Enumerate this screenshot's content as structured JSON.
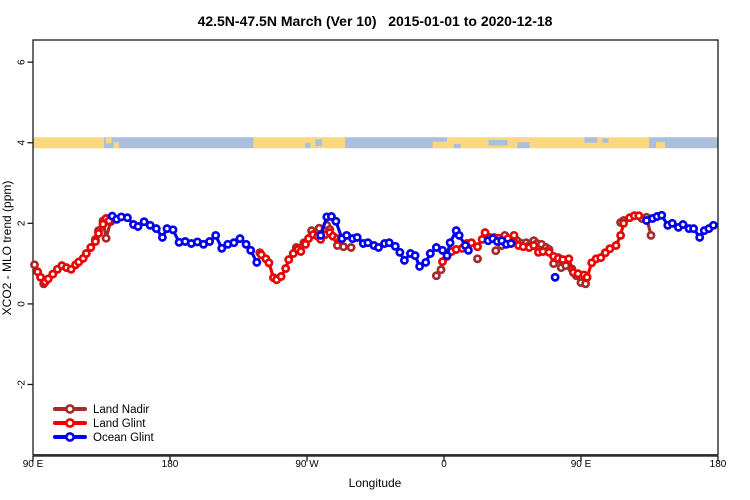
{
  "chart_data": {
    "type": "line",
    "title": "42.5N-47.5N March (Ver 10)   2015-01-01 to 2020-12-18",
    "xlabel": "Longitude",
    "ylabel": "XCO2 - MLO trend (ppm)",
    "x_axis": {
      "unit": "degrees eastward from 90E (axis wraps 90E>180>90W>0>90E>180)",
      "range_deg": [
        0,
        450
      ],
      "ticks": [
        {
          "deg": 0,
          "label": "90 E"
        },
        {
          "deg": 90,
          "label": "180"
        },
        {
          "deg": 180,
          "label": "90 W"
        },
        {
          "deg": 270,
          "label": "0"
        },
        {
          "deg": 360,
          "label": "90 E"
        },
        {
          "deg": 450,
          "label": "180"
        }
      ]
    },
    "y_axis": {
      "ticks": [
        -2,
        0,
        2,
        4,
        6
      ],
      "lim": [
        -3.75,
        6.55
      ],
      "labels_rotated": true
    },
    "gap_break_deg": 10,
    "marker": "open-circle",
    "series": [
      {
        "name": "Land Nadir",
        "color": "#A52A2A",
        "points": [
          [
            1,
            0.97
          ],
          [
            7,
            0.5
          ],
          [
            41,
            1.6
          ],
          [
            43,
            1.82
          ],
          [
            46,
            2.06
          ],
          [
            48,
            1.63
          ],
          [
            51,
            2.04
          ],
          [
            149,
            1.27
          ],
          [
            173,
            1.4
          ],
          [
            178,
            1.52
          ],
          [
            183,
            1.82
          ],
          [
            188,
            1.88
          ],
          [
            193,
            1.95
          ],
          [
            195,
            1.85
          ],
          [
            200,
            1.45
          ],
          [
            204,
            1.42
          ],
          [
            209,
            1.4
          ],
          [
            265,
            0.7
          ],
          [
            268,
            0.85
          ],
          [
            292,
            1.12
          ],
          [
            304,
            1.32
          ],
          [
            308,
            1.45
          ],
          [
            310,
            1.7
          ],
          [
            314,
            1.55
          ],
          [
            318,
            1.57
          ],
          [
            321,
            1.5
          ],
          [
            324,
            1.52
          ],
          [
            326,
            1.45
          ],
          [
            329,
            1.57
          ],
          [
            331,
            1.5
          ],
          [
            334,
            1.48
          ],
          [
            337,
            1.4
          ],
          [
            339,
            1.35
          ],
          [
            342,
            1.0
          ],
          [
            345,
            1.15
          ],
          [
            347,
            0.9
          ],
          [
            350,
            0.95
          ],
          [
            354,
            0.87
          ],
          [
            357,
            0.7
          ],
          [
            360,
            0.53
          ],
          [
            363,
            0.5
          ],
          [
            386,
            2.02
          ],
          [
            388,
            2.07
          ],
          [
            400,
            2.12
          ],
          [
            403,
            2.15
          ],
          [
            406,
            1.7
          ]
        ]
      },
      {
        "name": "Land Glint",
        "color": "#EE0000",
        "points": [
          [
            3,
            0.8
          ],
          [
            5,
            0.66
          ],
          [
            8,
            0.55
          ],
          [
            10,
            0.62
          ],
          [
            13,
            0.74
          ],
          [
            16,
            0.86
          ],
          [
            19,
            0.95
          ],
          [
            22,
            0.9
          ],
          [
            25,
            0.86
          ],
          [
            28,
            0.97
          ],
          [
            30,
            1.04
          ],
          [
            33,
            1.13
          ],
          [
            35,
            1.25
          ],
          [
            38,
            1.4
          ],
          [
            41,
            1.55
          ],
          [
            43,
            1.75
          ],
          [
            46,
            1.98
          ],
          [
            48,
            2.12
          ],
          [
            50,
            2.06
          ],
          [
            150,
            1.22
          ],
          [
            153,
            1.12
          ],
          [
            155,
            1.02
          ],
          [
            158,
            0.65
          ],
          [
            160,
            0.6
          ],
          [
            163,
            0.68
          ],
          [
            166,
            0.88
          ],
          [
            168,
            1.1
          ],
          [
            171,
            1.25
          ],
          [
            174,
            1.35
          ],
          [
            176,
            1.3
          ],
          [
            179,
            1.48
          ],
          [
            181,
            1.62
          ],
          [
            184,
            1.72
          ],
          [
            187,
            1.68
          ],
          [
            189,
            1.6
          ],
          [
            192,
            1.72
          ],
          [
            195,
            1.77
          ],
          [
            197,
            1.68
          ],
          [
            200,
            1.62
          ],
          [
            202,
            1.58
          ],
          [
            269,
            1.05
          ],
          [
            272,
            1.18
          ],
          [
            275,
            1.3
          ],
          [
            278,
            1.35
          ],
          [
            282,
            1.38
          ],
          [
            285,
            1.5
          ],
          [
            288,
            1.52
          ],
          [
            292,
            1.42
          ],
          [
            295,
            1.6
          ],
          [
            297,
            1.77
          ],
          [
            300,
            1.65
          ],
          [
            303,
            1.65
          ],
          [
            306,
            1.63
          ],
          [
            309,
            1.55
          ],
          [
            312,
            1.62
          ],
          [
            316,
            1.7
          ],
          [
            319,
            1.45
          ],
          [
            322,
            1.42
          ],
          [
            326,
            1.4
          ],
          [
            329,
            1.45
          ],
          [
            332,
            1.28
          ],
          [
            335,
            1.3
          ],
          [
            339,
            1.28
          ],
          [
            342,
            1.18
          ],
          [
            345,
            1.13
          ],
          [
            348,
            1.1
          ],
          [
            352,
            1.12
          ],
          [
            355,
            0.78
          ],
          [
            358,
            0.75
          ],
          [
            362,
            0.72
          ],
          [
            364,
            0.66
          ],
          [
            367,
            1.02
          ],
          [
            370,
            1.12
          ],
          [
            373,
            1.15
          ],
          [
            376,
            1.27
          ],
          [
            379,
            1.37
          ],
          [
            383,
            1.45
          ],
          [
            386,
            1.7
          ],
          [
            388,
            2.0
          ],
          [
            392,
            2.14
          ],
          [
            395,
            2.19
          ],
          [
            398,
            2.19
          ]
        ]
      },
      {
        "name": "Ocean Glint",
        "color": "#0000EE",
        "points": [
          [
            52,
            2.18
          ],
          [
            55,
            2.1
          ],
          [
            58,
            2.16
          ],
          [
            62,
            2.14
          ],
          [
            66,
            1.97
          ],
          [
            69,
            1.92
          ],
          [
            73,
            2.04
          ],
          [
            77,
            1.95
          ],
          [
            81,
            1.87
          ],
          [
            85,
            1.65
          ],
          [
            88,
            1.87
          ],
          [
            92,
            1.84
          ],
          [
            96,
            1.53
          ],
          [
            100,
            1.55
          ],
          [
            104,
            1.5
          ],
          [
            108,
            1.54
          ],
          [
            112,
            1.48
          ],
          [
            116,
            1.55
          ],
          [
            120,
            1.7
          ],
          [
            124,
            1.38
          ],
          [
            128,
            1.48
          ],
          [
            132,
            1.52
          ],
          [
            136,
            1.62
          ],
          [
            140,
            1.48
          ],
          [
            143,
            1.33
          ],
          [
            147,
            1.03
          ],
          [
            189,
            1.7
          ],
          [
            193,
            2.16
          ],
          [
            196,
            2.17
          ],
          [
            199,
            2.05
          ],
          [
            203,
            1.62
          ],
          [
            206,
            1.7
          ],
          [
            210,
            1.62
          ],
          [
            213,
            1.65
          ],
          [
            217,
            1.5
          ],
          [
            220,
            1.52
          ],
          [
            224,
            1.45
          ],
          [
            227,
            1.4
          ],
          [
            231,
            1.5
          ],
          [
            234,
            1.52
          ],
          [
            238,
            1.43
          ],
          [
            241,
            1.28
          ],
          [
            244,
            1.08
          ],
          [
            248,
            1.25
          ],
          [
            251,
            1.2
          ],
          [
            254,
            0.93
          ],
          [
            258,
            1.03
          ],
          [
            261,
            1.25
          ],
          [
            265,
            1.4
          ],
          [
            269,
            1.33
          ],
          [
            272,
            1.2
          ],
          [
            274,
            1.52
          ],
          [
            278,
            1.82
          ],
          [
            280,
            1.7
          ],
          [
            284,
            1.45
          ],
          [
            286,
            1.33
          ],
          [
            299,
            1.57
          ],
          [
            302,
            1.62
          ],
          [
            305,
            1.55
          ],
          [
            308,
            1.57
          ],
          [
            311,
            1.48
          ],
          [
            314,
            1.5
          ],
          [
            343,
            0.66
          ],
          [
            403,
            2.07
          ],
          [
            407,
            2.12
          ],
          [
            410,
            2.17
          ],
          [
            413,
            2.2
          ],
          [
            417,
            1.95
          ],
          [
            420,
            2.0
          ],
          [
            424,
            1.9
          ],
          [
            427,
            1.97
          ],
          [
            431,
            1.87
          ],
          [
            434,
            1.87
          ],
          [
            438,
            1.65
          ],
          [
            441,
            1.82
          ],
          [
            444,
            1.87
          ],
          [
            447,
            1.95
          ]
        ]
      }
    ],
    "map_strip": {
      "at_value": 4,
      "land_color": "#FAD780",
      "ocean_color": "#A9BFDC",
      "base": [
        {
          "type": "land",
          "from": 0,
          "to": 46.5
        },
        {
          "type": "ocean",
          "from": 46.5,
          "to": 144.8
        },
        {
          "type": "land",
          "from": 144.8,
          "to": 205
        },
        {
          "type": "ocean",
          "from": 205,
          "to": 272
        },
        {
          "type": "land",
          "from": 272,
          "to": 404.7
        },
        {
          "type": "ocean",
          "from": 404.7,
          "to": 450
        }
      ],
      "patches": [
        {
          "type": "land",
          "from": 47.8,
          "to": 51.7,
          "top": 0,
          "bot": 0.55
        },
        {
          "type": "land",
          "from": 53,
          "to": 56.5,
          "top": 0.45,
          "bot": 1
        },
        {
          "type": "ocean",
          "from": 178.8,
          "to": 182.1,
          "top": 0.5,
          "bot": 1
        },
        {
          "type": "ocean",
          "from": 185.4,
          "to": 190,
          "top": 0.2,
          "bot": 0.8
        },
        {
          "type": "land",
          "from": 262.5,
          "to": 272,
          "top": 0.4,
          "bot": 1
        },
        {
          "type": "ocean",
          "from": 276.4,
          "to": 281,
          "top": 0.6,
          "bot": 1
        },
        {
          "type": "ocean",
          "from": 299.3,
          "to": 311.7,
          "top": 0.25,
          "bot": 0.75
        },
        {
          "type": "ocean",
          "from": 318.3,
          "to": 326.2,
          "top": 0.45,
          "bot": 1
        },
        {
          "type": "ocean",
          "from": 362.2,
          "to": 370.7,
          "top": 0,
          "bot": 0.5
        },
        {
          "type": "ocean",
          "from": 374,
          "to": 378,
          "top": 0.1,
          "bot": 0.5
        },
        {
          "type": "land",
          "from": 409.3,
          "to": 415.2,
          "top": 0.45,
          "bot": 1
        }
      ]
    },
    "legend_position": "bottom-left"
  },
  "colors": {
    "background": "#FFFFFF",
    "axis_box": "#1A1A1A",
    "baseline": "#4D4D4D",
    "text": "#000000"
  }
}
